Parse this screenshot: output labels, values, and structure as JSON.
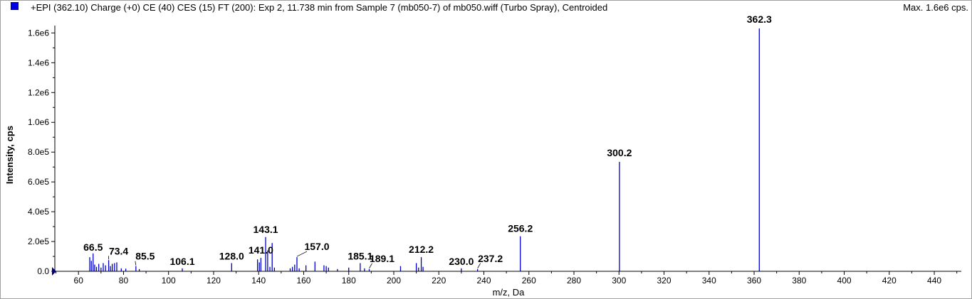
{
  "header": {
    "title": "+EPI (362.10) Charge (+0) CE (40) CES (15) FT (200): Exp 2, 11.738 min from Sample 7 (mb050-7) of mb050.wiff (Turbo Spray), Centroided",
    "max_label": "Max. 1.6e6 cps."
  },
  "colors": {
    "series": "#0000cc",
    "axis": "#000000",
    "marker": "#000080"
  },
  "chart_data": {
    "type": "bar",
    "title": "+EPI (362.10) Charge (+0) CE (40) CES (15) FT (200): Exp 2, 11.738 min from Sample 7 (mb050-7) of mb050.wiff (Turbo Spray), Centroided",
    "xlabel": "m/z, Da",
    "ylabel": "Intensity, cps",
    "xlim": [
      49.5,
      452
    ],
    "ylim": [
      0,
      1640000.0
    ],
    "x_ticks": [
      60,
      80,
      100,
      120,
      140,
      160,
      180,
      200,
      220,
      240,
      260,
      280,
      300,
      320,
      340,
      360,
      380,
      400,
      420,
      440
    ],
    "y_ticks": [
      {
        "value": 0,
        "label": "0.0"
      },
      {
        "value": 200000,
        "label": "2.0e5"
      },
      {
        "value": 400000,
        "label": "4.0e5"
      },
      {
        "value": 600000,
        "label": "6.0e5"
      },
      {
        "value": 800000,
        "label": "8.0e5"
      },
      {
        "value": 1000000,
        "label": "1.0e6"
      },
      {
        "value": 1200000,
        "label": "1.2e6"
      },
      {
        "value": 1400000,
        "label": "1.4e6"
      },
      {
        "value": 1600000,
        "label": "1.6e6"
      }
    ],
    "peaks": [
      {
        "mz": 65.0,
        "intensity": 95000
      },
      {
        "mz": 65.7,
        "intensity": 70000
      },
      {
        "mz": 66.5,
        "intensity": 120000
      },
      {
        "mz": 67.2,
        "intensity": 45000
      },
      {
        "mz": 68.0,
        "intensity": 30000
      },
      {
        "mz": 69.0,
        "intensity": 50000
      },
      {
        "mz": 70.0,
        "intensity": 25000
      },
      {
        "mz": 71.0,
        "intensity": 55000
      },
      {
        "mz": 72.0,
        "intensity": 40000
      },
      {
        "mz": 73.4,
        "intensity": 75000
      },
      {
        "mz": 74.2,
        "intensity": 35000
      },
      {
        "mz": 75.0,
        "intensity": 50000
      },
      {
        "mz": 76.0,
        "intensity": 55000
      },
      {
        "mz": 77.0,
        "intensity": 60000
      },
      {
        "mz": 79.0,
        "intensity": 20000
      },
      {
        "mz": 81.0,
        "intensity": 18000
      },
      {
        "mz": 85.5,
        "intensity": 35000
      },
      {
        "mz": 87.0,
        "intensity": 15000
      },
      {
        "mz": 106.1,
        "intensity": 20000
      },
      {
        "mz": 128.0,
        "intensity": 55000
      },
      {
        "mz": 139.5,
        "intensity": 80000
      },
      {
        "mz": 140.3,
        "intensity": 60000
      },
      {
        "mz": 141.0,
        "intensity": 90000
      },
      {
        "mz": 143.1,
        "intensity": 230000
      },
      {
        "mz": 144.0,
        "intensity": 140000
      },
      {
        "mz": 145.0,
        "intensity": 30000
      },
      {
        "mz": 146.0,
        "intensity": 190000
      },
      {
        "mz": 147.0,
        "intensity": 25000
      },
      {
        "mz": 154.0,
        "intensity": 20000
      },
      {
        "mz": 155.0,
        "intensity": 30000
      },
      {
        "mz": 156.0,
        "intensity": 45000
      },
      {
        "mz": 157.0,
        "intensity": 95000
      },
      {
        "mz": 158.0,
        "intensity": 20000
      },
      {
        "mz": 161.0,
        "intensity": 40000
      },
      {
        "mz": 165.0,
        "intensity": 65000
      },
      {
        "mz": 169.0,
        "intensity": 40000
      },
      {
        "mz": 170.0,
        "intensity": 35000
      },
      {
        "mz": 171.0,
        "intensity": 25000
      },
      {
        "mz": 175.0,
        "intensity": 15000
      },
      {
        "mz": 180.0,
        "intensity": 25000
      },
      {
        "mz": 185.1,
        "intensity": 55000
      },
      {
        "mz": 187.0,
        "intensity": 20000
      },
      {
        "mz": 189.1,
        "intensity": 15000
      },
      {
        "mz": 203.0,
        "intensity": 35000
      },
      {
        "mz": 210.0,
        "intensity": 55000
      },
      {
        "mz": 211.0,
        "intensity": 25000
      },
      {
        "mz": 212.2,
        "intensity": 95000
      },
      {
        "mz": 213.0,
        "intensity": 30000
      },
      {
        "mz": 230.0,
        "intensity": 20000
      },
      {
        "mz": 237.2,
        "intensity": 15000
      },
      {
        "mz": 256.2,
        "intensity": 235000
      },
      {
        "mz": 300.2,
        "intensity": 735000
      },
      {
        "mz": 362.3,
        "intensity": 1630000
      }
    ],
    "annotations": [
      {
        "label": "66.5",
        "mz": 66.5,
        "intensity": 120000
      },
      {
        "label": "73.4",
        "mz": 73.4,
        "intensity": 75000
      },
      {
        "label": "85.5",
        "mz": 85.5,
        "intensity": 35000
      },
      {
        "label": "106.1",
        "mz": 106.1,
        "intensity": 20000
      },
      {
        "label": "128.0",
        "mz": 128.0,
        "intensity": 55000
      },
      {
        "label": "141.0",
        "mz": 141.0,
        "intensity": 90000
      },
      {
        "label": "143.1",
        "mz": 143.1,
        "intensity": 230000
      },
      {
        "label": "157.0",
        "mz": 157.0,
        "intensity": 95000
      },
      {
        "label": "185.1",
        "mz": 185.1,
        "intensity": 55000
      },
      {
        "label": "189.1",
        "mz": 189.1,
        "intensity": 15000
      },
      {
        "label": "212.2",
        "mz": 212.2,
        "intensity": 95000
      },
      {
        "label": "230.0",
        "mz": 230.0,
        "intensity": 20000
      },
      {
        "label": "237.2",
        "mz": 237.2,
        "intensity": 15000
      },
      {
        "label": "256.2",
        "mz": 256.2,
        "intensity": 235000
      },
      {
        "label": "300.2",
        "mz": 300.2,
        "intensity": 735000
      },
      {
        "label": "362.3",
        "mz": 362.3,
        "intensity": 1630000
      }
    ]
  }
}
